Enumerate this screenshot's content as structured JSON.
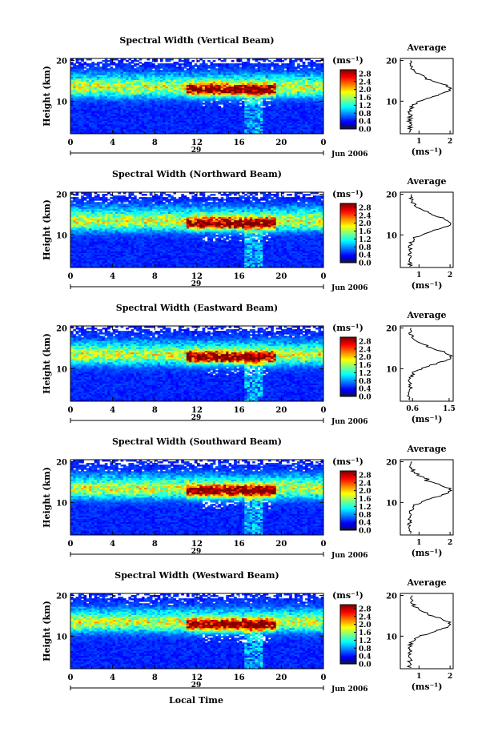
{
  "figure": {
    "xlabel": "Local Time",
    "panel_ylabel": "Height (km)",
    "unit_label": "(ms⁻¹)",
    "avg_title": "Average",
    "avg_xlabel": "(ms⁻¹)",
    "date_label": "Jun 2006",
    "day_label": "29"
  },
  "chart_data": [
    {
      "type": "heatmap",
      "title": "Spectral Width (Vertical Beam)",
      "xlabel": "",
      "ylabel": "Height (km)",
      "x_ticks": [
        "0",
        "4",
        "8",
        "12",
        "16",
        "20",
        "0"
      ],
      "xlim_hours": [
        0,
        24
      ],
      "y_ticks": [
        10,
        20
      ],
      "ylim_km": [
        2,
        20.5
      ],
      "colorbar": {
        "label": "(ms⁻¹)",
        "range": [
          0,
          3.0
        ],
        "ticks": [
          "0.0",
          "0.4",
          "0.8",
          "1.2",
          "1.6",
          "2.0",
          "2.4",
          "2.8"
        ]
      },
      "average_profile": {
        "title": "Average",
        "xlabel": "(ms⁻¹)",
        "xlim": [
          0.4,
          2.1
        ],
        "x_ticks": [
          "1",
          "2"
        ],
        "peak_km": 13,
        "peak_value": 2.0
      }
    },
    {
      "type": "heatmap",
      "title": "Spectral Width (Northward Beam)",
      "xlabel": "",
      "ylabel": "Height (km)",
      "x_ticks": [
        "0",
        "4",
        "8",
        "12",
        "16",
        "20",
        "0"
      ],
      "xlim_hours": [
        0,
        24
      ],
      "y_ticks": [
        10,
        20
      ],
      "ylim_km": [
        2,
        20.5
      ],
      "colorbar": {
        "label": "(ms⁻¹)",
        "range": [
          0,
          3.0
        ],
        "ticks": [
          "0.0",
          "0.4",
          "0.8",
          "1.2",
          "1.6",
          "2.0",
          "2.4",
          "2.8"
        ]
      },
      "average_profile": {
        "title": "Average",
        "xlabel": "(ms⁻¹)",
        "xlim": [
          0.4,
          2.1
        ],
        "x_ticks": [
          "1",
          "2"
        ],
        "peak_km": 13,
        "peak_value": 2.0
      }
    },
    {
      "type": "heatmap",
      "title": "Spectral Width (Eastward Beam)",
      "xlabel": "",
      "ylabel": "Height (km)",
      "x_ticks": [
        "0",
        "4",
        "8",
        "12",
        "16",
        "20",
        "0"
      ],
      "xlim_hours": [
        0,
        24
      ],
      "y_ticks": [
        10,
        20
      ],
      "ylim_km": [
        2,
        20.5
      ],
      "colorbar": {
        "label": "(ms⁻¹)",
        "range": [
          0,
          3.0
        ],
        "ticks": [
          "0.0",
          "0.4",
          "0.8",
          "1.2",
          "1.6",
          "2.0",
          "2.4",
          "2.8"
        ]
      },
      "average_profile": {
        "title": "Average",
        "xlabel": "(ms⁻¹)",
        "xlim": [
          0.3,
          1.6
        ],
        "x_ticks": [
          "0.6",
          "1.5"
        ],
        "peak_km": 13,
        "peak_value": 1.55
      }
    },
    {
      "type": "heatmap",
      "title": "Spectral Width (Southward Beam)",
      "xlabel": "",
      "ylabel": "Height (km)",
      "x_ticks": [
        "0",
        "4",
        "8",
        "12",
        "16",
        "20",
        "0"
      ],
      "xlim_hours": [
        0,
        24
      ],
      "y_ticks": [
        10,
        20
      ],
      "ylim_km": [
        2,
        20.5
      ],
      "colorbar": {
        "label": "(ms⁻¹)",
        "range": [
          0,
          3.0
        ],
        "ticks": [
          "0.0",
          "0.4",
          "0.8",
          "1.2",
          "1.6",
          "2.0",
          "2.4",
          "2.8"
        ]
      },
      "average_profile": {
        "title": "Average",
        "xlabel": "(ms⁻¹)",
        "xlim": [
          0.4,
          2.1
        ],
        "x_ticks": [
          "1",
          "2"
        ],
        "peak_km": 13,
        "peak_value": 2.0
      }
    },
    {
      "type": "heatmap",
      "title": "Spectral Width (Westward Beam)",
      "xlabel": "Local Time",
      "ylabel": "Height (km)",
      "x_ticks": [
        "0",
        "4",
        "8",
        "12",
        "16",
        "20",
        "0"
      ],
      "xlim_hours": [
        0,
        24
      ],
      "y_ticks": [
        10,
        20
      ],
      "ylim_km": [
        2,
        20.5
      ],
      "colorbar": {
        "label": "(ms⁻¹)",
        "range": [
          0,
          3.0
        ],
        "ticks": [
          "0.0",
          "0.4",
          "0.8",
          "1.2",
          "1.6",
          "2.0",
          "2.4",
          "2.8"
        ]
      },
      "average_profile": {
        "title": "Average",
        "xlabel": "(ms⁻¹)",
        "xlim": [
          0.4,
          2.1
        ],
        "x_ticks": [
          "1",
          "2"
        ],
        "peak_km": 13,
        "peak_value": 2.0
      }
    }
  ]
}
